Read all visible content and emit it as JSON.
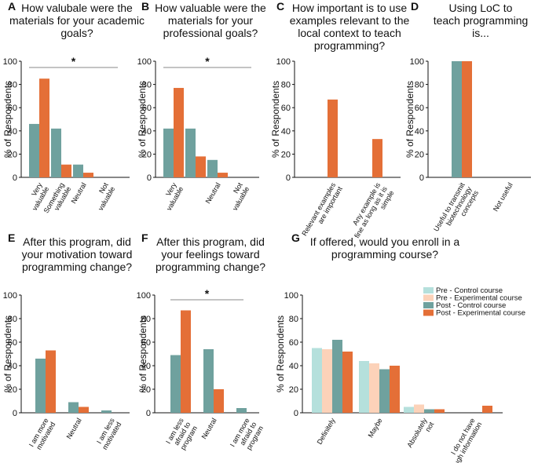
{
  "colors": {
    "control": "#6fa19e",
    "experimental": "#e46f37",
    "pre_control": "#b5e0dc",
    "pre_experimental": "#fcd2b9"
  },
  "legend": [
    {
      "label": "Pre - Control course",
      "color": "#b5e0dc"
    },
    {
      "label": "Pre - Experimental course",
      "color": "#fcd2b9"
    },
    {
      "label": "Post - Control course",
      "color": "#6fa19e"
    },
    {
      "label": "Post - Experimental course",
      "color": "#e46f37"
    }
  ],
  "chart_data": [
    {
      "letter": "A",
      "type": "bar",
      "title": [
        "How valubale were the",
        "materials for your academic",
        "goals?"
      ],
      "ylabel": "% of Respondents",
      "ylim": [
        0,
        100
      ],
      "yticks": [
        0,
        20,
        40,
        60,
        80,
        100
      ],
      "categories": [
        [
          "Very",
          "valuable"
        ],
        [
          "Something",
          "valuable"
        ],
        [
          "Neutral"
        ],
        [
          "Not",
          "valuable"
        ]
      ],
      "series": [
        {
          "name": "Post - Control course",
          "color": "#6fa19e",
          "values": [
            46,
            42,
            11,
            0
          ]
        },
        {
          "name": "Post - Experimental course",
          "color": "#e46f37",
          "values": [
            85,
            11,
            4,
            0
          ]
        }
      ],
      "significance": "*"
    },
    {
      "letter": "B",
      "type": "bar",
      "title": [
        "How valuable were the",
        "materials for your",
        "professional goals?"
      ],
      "ylabel": "% of Respondents",
      "ylim": [
        0,
        100
      ],
      "yticks": [
        0,
        20,
        40,
        60,
        80,
        100
      ],
      "categories": [
        [
          "Very",
          "valuable"
        ],
        [
          ""
        ],
        [
          "Neutral"
        ],
        [
          "Not",
          "valuable"
        ]
      ],
      "series": [
        {
          "name": "Post - Control course",
          "color": "#6fa19e",
          "values": [
            42,
            42,
            15,
            0
          ]
        },
        {
          "name": "Post - Experimental course",
          "color": "#e46f37",
          "values": [
            77,
            18,
            4,
            0
          ]
        }
      ],
      "significance": "*"
    },
    {
      "letter": "C",
      "type": "bar",
      "title": [
        "How important is to use",
        "examples relevant to the",
        "local context to teach",
        "programming?"
      ],
      "ylabel": "% of Respondents",
      "ylim": [
        0,
        100
      ],
      "yticks": [
        0,
        20,
        40,
        60,
        80,
        100
      ],
      "categories": [
        [
          "Relevant examples",
          "are important"
        ],
        [
          "Any example is",
          "fine as long as it is",
          "simple"
        ]
      ],
      "series": [
        {
          "name": "Post - Experimental course",
          "color": "#e46f37",
          "values": [
            67,
            33
          ]
        }
      ]
    },
    {
      "letter": "D",
      "type": "bar",
      "title": [
        "Using LoC to",
        "teach programming",
        "is..."
      ],
      "ylabel": "% of Respondents",
      "ylim": [
        0,
        100
      ],
      "yticks": [
        0,
        20,
        40,
        60,
        80,
        100
      ],
      "categories": [
        [
          "Useful to transmit",
          "biotechnology",
          "concepts"
        ],
        [
          "Not useful"
        ]
      ],
      "series": [
        {
          "name": "Post - Control course",
          "color": "#6fa19e",
          "values": [
            100,
            0
          ]
        },
        {
          "name": "Post - Experimental course",
          "color": "#e46f37",
          "values": [
            100,
            0
          ]
        }
      ]
    },
    {
      "letter": "E",
      "type": "bar",
      "title": [
        "After this program, did",
        "your motivation toward",
        "programming change?"
      ],
      "ylabel": "% of Respondents",
      "ylim": [
        0,
        100
      ],
      "yticks": [
        0,
        20,
        40,
        60,
        80,
        100
      ],
      "categories": [
        [
          "I am more",
          "motivated"
        ],
        [
          "Neutral"
        ],
        [
          "I am less",
          "motivated"
        ]
      ],
      "series": [
        {
          "name": "Post - Control course",
          "color": "#6fa19e",
          "values": [
            46,
            9,
            2
          ]
        },
        {
          "name": "Post - Experimental course",
          "color": "#e46f37",
          "values": [
            53,
            5,
            0
          ]
        }
      ]
    },
    {
      "letter": "F",
      "type": "bar",
      "title": [
        "After this program, did",
        "your feelings toward",
        "programming change?"
      ],
      "ylabel": "% of Respondents",
      "ylim": [
        0,
        100
      ],
      "yticks": [
        0,
        20,
        40,
        60,
        80,
        100
      ],
      "categories": [
        [
          "I am less",
          "afraid to",
          "program"
        ],
        [
          "Neutral"
        ],
        [
          "I am more",
          "afraid to",
          "program"
        ]
      ],
      "series": [
        {
          "name": "Post - Control course",
          "color": "#6fa19e",
          "values": [
            49,
            54,
            4
          ]
        },
        {
          "name": "Post - Experimental course",
          "color": "#e46f37",
          "values": [
            87,
            20,
            0
          ]
        }
      ],
      "significance": "*"
    },
    {
      "letter": "G",
      "type": "bar",
      "title": [
        "If offered, would you enroll in a",
        "programming course?"
      ],
      "ylabel": "% of Respondents",
      "ylim": [
        0,
        100
      ],
      "yticks": [
        0,
        20,
        40,
        60,
        80,
        100
      ],
      "categories": [
        [
          "Definitely"
        ],
        [
          "Maybe"
        ],
        [
          "Absolutely",
          "not"
        ],
        [
          "I do not have",
          "enough information"
        ]
      ],
      "series": [
        {
          "name": "Pre - Control course",
          "color": "#b5e0dc",
          "values": [
            55,
            44,
            5,
            0
          ]
        },
        {
          "name": "Pre - Experimental course",
          "color": "#fcd2b9",
          "values": [
            54,
            42,
            7,
            0
          ]
        },
        {
          "name": "Post - Control course",
          "color": "#6fa19e",
          "values": [
            62,
            37,
            3,
            0
          ]
        },
        {
          "name": "Post - Experimental course",
          "color": "#e46f37",
          "values": [
            52,
            40,
            3,
            6
          ]
        }
      ]
    }
  ]
}
